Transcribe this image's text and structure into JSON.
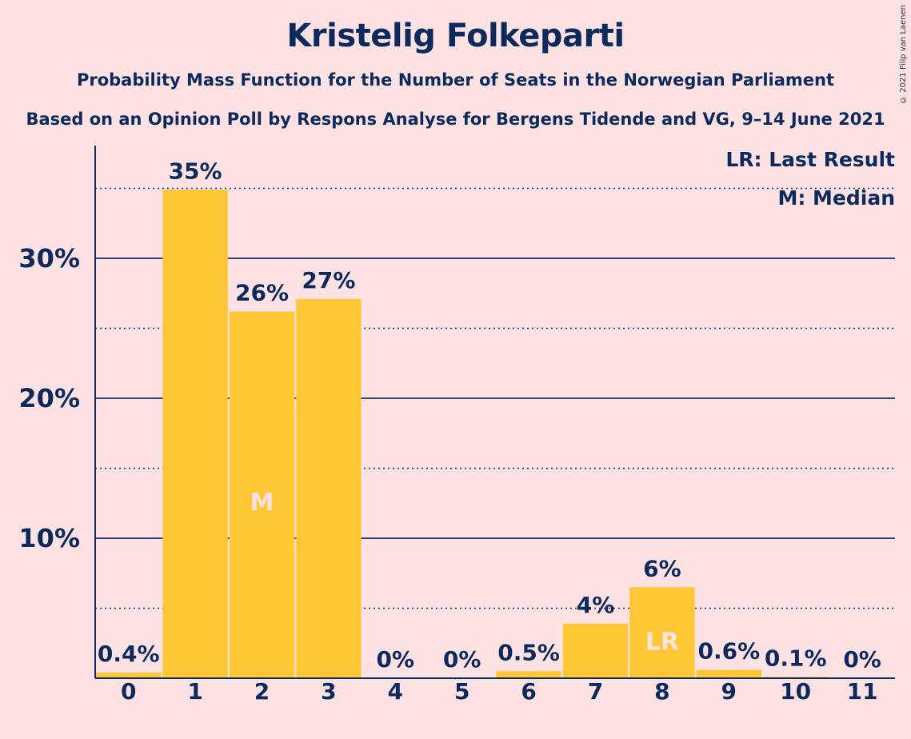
{
  "title": "Kristelig Folkeparti",
  "subtitle": "Probability Mass Function for the Number of Seats in the Norwegian Parliament",
  "subtitle2": "Based on an Opinion Poll by Respons Analyse for Bergens Tidende and VG, 9–14 June 2021",
  "copyright": "© 2021 Filip van Laenen",
  "colors": {
    "background": "#fde2e4",
    "bar": "#ffc735",
    "text": "#0e2a5c"
  },
  "chart_data": {
    "type": "bar",
    "categories": [
      "0",
      "1",
      "2",
      "3",
      "4",
      "5",
      "6",
      "7",
      "8",
      "9",
      "10",
      "11"
    ],
    "values": [
      0.4,
      34.9,
      26.2,
      27.1,
      0,
      0,
      0.5,
      3.9,
      6.5,
      0.6,
      0.1,
      0
    ],
    "value_labels": [
      "0.4%",
      "35%",
      "26%",
      "27%",
      "0%",
      "0%",
      "0.5%",
      "4%",
      "6%",
      "0.6%",
      "0.1%",
      "0%"
    ],
    "ylim": [
      0,
      38
    ],
    "yticks": [
      10,
      20,
      30
    ],
    "ytick_labels": [
      "10%",
      "20%",
      "30%"
    ],
    "minor_gridlines": [
      5,
      15,
      25,
      35
    ],
    "markers": [
      {
        "category": "2",
        "label": "M"
      },
      {
        "category": "8",
        "label": "LR"
      }
    ],
    "legend": {
      "placement": "top-right",
      "entries": [
        "LR: Last Result",
        "M: Median"
      ]
    }
  }
}
